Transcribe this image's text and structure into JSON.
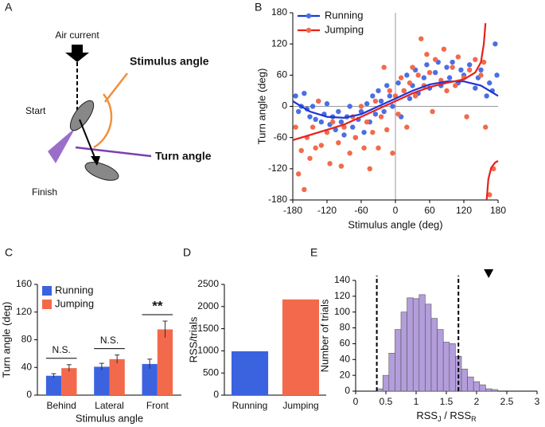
{
  "panel_labels": [
    "A",
    "B",
    "C",
    "D",
    "E"
  ],
  "diagram": {
    "air_current": "Air current",
    "stimulus_angle": "Stimulus angle",
    "turn_angle": "Turn angle",
    "start": "Start",
    "finish": "Finish"
  },
  "chart_data": [
    {
      "type": "scatter",
      "xlabel": "Stimulus angle (deg)",
      "ylabel": "Turn angle (deg)",
      "xlim": [
        -180,
        180
      ],
      "xticks": [
        -180,
        -120,
        -60,
        0,
        60,
        120,
        180
      ],
      "ylim": [
        -180,
        180
      ],
      "yticks": [
        -180,
        -120,
        -60,
        0,
        60,
        120,
        180
      ],
      "zero_lines": true,
      "series": [
        {
          "name": "Running",
          "color": "#4a6fe3",
          "line_color": "#1f35d4",
          "x": [
            -175,
            -170,
            -165,
            -160,
            -155,
            -150,
            -145,
            -140,
            -135,
            -130,
            -125,
            -120,
            -115,
            -110,
            -105,
            -100,
            -95,
            -90,
            -85,
            -80,
            -75,
            -70,
            -65,
            -60,
            -55,
            -50,
            -45,
            -40,
            -35,
            -30,
            -25,
            -20,
            -15,
            -10,
            -5,
            5,
            10,
            15,
            20,
            25,
            30,
            35,
            40,
            50,
            55,
            60,
            70,
            75,
            80,
            90,
            95,
            100,
            110,
            115,
            120,
            130,
            140,
            145,
            150,
            160,
            165,
            170,
            175,
            178
          ],
          "values": [
            20,
            -10,
            0,
            25,
            -5,
            -20,
            0,
            -25,
            10,
            -30,
            -15,
            5,
            -35,
            -20,
            -45,
            -10,
            -30,
            -55,
            -20,
            0,
            -40,
            -60,
            -25,
            -10,
            -50,
            5,
            -30,
            20,
            -15,
            30,
            10,
            -10,
            40,
            20,
            0,
            45,
            -20,
            30,
            60,
            15,
            40,
            70,
            25,
            55,
            80,
            35,
            65,
            85,
            40,
            75,
            55,
            85,
            45,
            70,
            60,
            80,
            35,
            55,
            70,
            20,
            45,
            30,
            120,
            60
          ]
        },
        {
          "name": "Jumping",
          "color": "#f26a4b",
          "line_color": "#e8201a",
          "x": [
            -175,
            -170,
            -165,
            -160,
            -155,
            -150,
            -145,
            -140,
            -135,
            -130,
            -120,
            -115,
            -110,
            -100,
            -95,
            -90,
            -80,
            -75,
            -70,
            -60,
            -55,
            -50,
            -45,
            -40,
            -35,
            -30,
            -25,
            -20,
            -15,
            -10,
            -5,
            0,
            5,
            10,
            15,
            20,
            25,
            30,
            35,
            40,
            45,
            50,
            55,
            60,
            65,
            70,
            80,
            85,
            90,
            100,
            105,
            110,
            120,
            125,
            130,
            140,
            150,
            155,
            158,
            165,
            172
          ],
          "values": [
            -40,
            -130,
            -85,
            -160,
            -60,
            -100,
            -40,
            -80,
            10,
            -75,
            -50,
            -110,
            -30,
            -70,
            -115,
            -40,
            -90,
            -20,
            -60,
            0,
            -80,
            -30,
            -120,
            -50,
            10,
            -80,
            -20,
            75,
            -45,
            30,
            -90,
            20,
            -15,
            55,
            30,
            -40,
            45,
            75,
            20,
            60,
            130,
            40,
            100,
            65,
            -10,
            90,
            50,
            110,
            30,
            75,
            40,
            95,
            55,
            -20,
            70,
            90,
            60,
            85,
            -40,
            -170,
            -120
          ]
        }
      ],
      "fits": [
        {
          "x": [
            -180,
            -150,
            -120,
            -90,
            -60,
            -30,
            0,
            30,
            60,
            90,
            120,
            150,
            180
          ],
          "values": [
            10,
            -10,
            -20,
            -22,
            -15,
            0,
            15,
            30,
            42,
            48,
            48,
            40,
            20
          ]
        },
        {
          "x": [
            -180,
            -150,
            -120,
            -90,
            -60,
            -30,
            0,
            30,
            60,
            90,
            120,
            140,
            150,
            155,
            158,
            159,
            160,
            163,
            168,
            175,
            180
          ],
          "values": [
            -65,
            -55,
            -45,
            -35,
            -20,
            -5,
            10,
            25,
            37,
            45,
            52,
            65,
            85,
            120,
            160,
            null,
            -180,
            -140,
            -118,
            -108,
            -105
          ]
        }
      ]
    },
    {
      "type": "grouped_bar",
      "xlabel": "Stimulus angle",
      "ylabel": "Turn angle (deg)",
      "categories": [
        "Behind",
        "Lateral",
        "Front"
      ],
      "ylim": [
        0,
        160
      ],
      "yticks": [
        0,
        40,
        80,
        120,
        160
      ],
      "series": [
        {
          "name": "Running",
          "color": "#3b63e0",
          "values": [
            28,
            41,
            45
          ],
          "errors": [
            3,
            5,
            7
          ]
        },
        {
          "name": "Jumping",
          "color": "#f26a4b",
          "values": [
            39,
            52,
            95
          ],
          "errors": [
            5,
            6,
            12
          ]
        }
      ],
      "annotations": [
        "N.S.",
        "N.S.",
        "**"
      ]
    },
    {
      "type": "bar",
      "ylabel": "RSS/trials",
      "categories": [
        "Running",
        "Jumping"
      ],
      "values": [
        990,
        2160
      ],
      "colors": [
        "#3b63e0",
        "#f26a4b"
      ],
      "ylim": [
        0,
        2500
      ],
      "yticks": [
        0,
        500,
        1000,
        1500,
        2000,
        2500
      ]
    },
    {
      "type": "histogram",
      "xlabel_parts": [
        "RSS",
        "J",
        " / RSS",
        "R"
      ],
      "ylabel": "Number of trials",
      "color": "#b39ddb",
      "bins": [
        0.35,
        0.45,
        0.55,
        0.65,
        0.75,
        0.85,
        0.95,
        1.05,
        1.15,
        1.25,
        1.35,
        1.45,
        1.55,
        1.65,
        1.75,
        1.85,
        1.95,
        2.05,
        2.15,
        2.25,
        2.35
      ],
      "counts": [
        3,
        20,
        48,
        78,
        100,
        118,
        117,
        122,
        110,
        92,
        78,
        62,
        60,
        44,
        28,
        18,
        12,
        8,
        3,
        2
      ],
      "thresholds": [
        0.35,
        1.7
      ],
      "marker_x": 2.2,
      "xlim": [
        0,
        3
      ],
      "xticks": [
        0,
        0.5,
        1,
        1.5,
        2,
        2.5,
        3
      ],
      "ylim": [
        0,
        140
      ],
      "yticks": [
        0,
        20,
        40,
        60,
        80,
        100,
        120,
        140
      ]
    }
  ]
}
